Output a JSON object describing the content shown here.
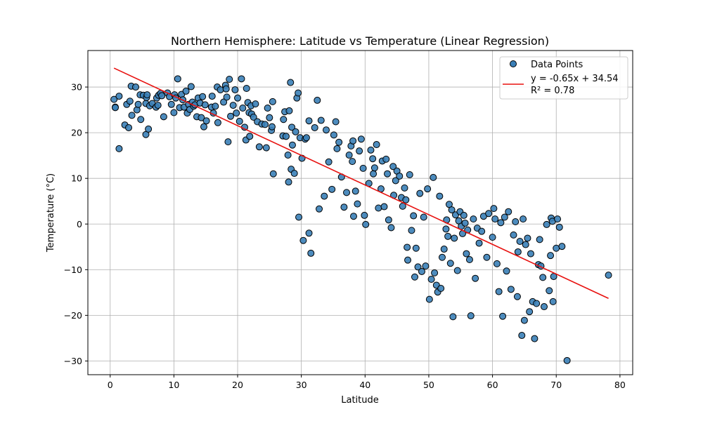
{
  "chart_data": {
    "type": "scatter",
    "title": "Northern Hemisphere: Latitude vs Temperature (Linear Regression)",
    "xlabel": "Latitude",
    "ylabel": "Temperature (°C)",
    "xlim": [
      -3.5,
      82
    ],
    "ylim": [
      -33,
      38
    ],
    "xticks": [
      0,
      10,
      20,
      30,
      40,
      50,
      60,
      70,
      80
    ],
    "yticks": [
      -30,
      -20,
      -10,
      0,
      10,
      20,
      30
    ],
    "grid": true,
    "legend_position": "top-right",
    "legend": [
      {
        "kind": "marker",
        "label": "Data Points"
      },
      {
        "kind": "line",
        "label": "y = -0.65x + 34.54"
      },
      {
        "kind": "text",
        "label": "R² = 0.78"
      }
    ],
    "colors": {
      "points": "#3a7fb7",
      "point_edge": "#000000",
      "regression": "#e8110f",
      "grid": "#b0b0b0"
    },
    "regression": {
      "slope": -0.65,
      "intercept": 34.54,
      "x_range": [
        0.6,
        78.2
      ],
      "equation": "y = -0.65x + 34.54",
      "r2": "R² = 0.78"
    },
    "series": [
      {
        "name": "Data Points",
        "points": [
          [
            0.6,
            27.3
          ],
          [
            0.8,
            25.6
          ],
          [
            0.8,
            25.5
          ],
          [
            1.4,
            16.5
          ],
          [
            1.4,
            28.0
          ],
          [
            2.3,
            21.7
          ],
          [
            2.6,
            26.2
          ],
          [
            2.9,
            21.1
          ],
          [
            3.1,
            26.9
          ],
          [
            3.3,
            30.2
          ],
          [
            3.4,
            23.8
          ],
          [
            4.0,
            30.0
          ],
          [
            4.2,
            25.0
          ],
          [
            4.4,
            26.2
          ],
          [
            4.7,
            28.3
          ],
          [
            4.8,
            22.9
          ],
          [
            5.2,
            28.2
          ],
          [
            5.6,
            19.6
          ],
          [
            5.6,
            26.4
          ],
          [
            5.7,
            27.7
          ],
          [
            5.8,
            28.3
          ],
          [
            6.0,
            20.8
          ],
          [
            6.2,
            25.9
          ],
          [
            6.6,
            26.4
          ],
          [
            7.2,
            25.6
          ],
          [
            7.3,
            27.6
          ],
          [
            7.5,
            26.0
          ],
          [
            7.6,
            28.2
          ],
          [
            7.9,
            28.6
          ],
          [
            8.1,
            28.1
          ],
          [
            8.4,
            23.5
          ],
          [
            9.0,
            28.7
          ],
          [
            9.3,
            27.9
          ],
          [
            9.6,
            26.2
          ],
          [
            10.0,
            24.4
          ],
          [
            10.1,
            28.3
          ],
          [
            10.3,
            27.6
          ],
          [
            10.6,
            31.8
          ],
          [
            10.9,
            25.5
          ],
          [
            11.2,
            28.4
          ],
          [
            11.4,
            27.2
          ],
          [
            11.6,
            25.6
          ],
          [
            11.9,
            29.1
          ],
          [
            12.1,
            24.3
          ],
          [
            12.3,
            26.2
          ],
          [
            12.5,
            25.1
          ],
          [
            12.7,
            30.1
          ],
          [
            12.9,
            26.7
          ],
          [
            13.1,
            25.8
          ],
          [
            13.3,
            26.1
          ],
          [
            13.6,
            23.5
          ],
          [
            13.8,
            27.6
          ],
          [
            14.1,
            26.5
          ],
          [
            14.3,
            23.3
          ],
          [
            14.5,
            27.9
          ],
          [
            14.7,
            21.3
          ],
          [
            14.9,
            26.1
          ],
          [
            15.1,
            22.6
          ],
          [
            15.9,
            25.6
          ],
          [
            16.0,
            28.0
          ],
          [
            16.2,
            24.3
          ],
          [
            16.5,
            25.8
          ],
          [
            16.8,
            30.0
          ],
          [
            16.9,
            22.2
          ],
          [
            17.3,
            29.4
          ],
          [
            17.8,
            26.7
          ],
          [
            18.1,
            30.4
          ],
          [
            18.2,
            29.6
          ],
          [
            18.3,
            27.8
          ],
          [
            18.5,
            18.0
          ],
          [
            18.7,
            31.7
          ],
          [
            18.9,
            23.6
          ],
          [
            19.3,
            26.0
          ],
          [
            19.6,
            29.4
          ],
          [
            19.8,
            24.3
          ],
          [
            20.0,
            27.6
          ],
          [
            20.3,
            22.5
          ],
          [
            20.6,
            31.8
          ],
          [
            20.8,
            25.4
          ],
          [
            21.1,
            21.2
          ],
          [
            21.3,
            18.4
          ],
          [
            21.4,
            29.7
          ],
          [
            21.6,
            26.6
          ],
          [
            21.8,
            24.4
          ],
          [
            21.9,
            19.2
          ],
          [
            22.1,
            25.9
          ],
          [
            22.2,
            24.1
          ],
          [
            22.5,
            23.4
          ],
          [
            22.8,
            26.3
          ],
          [
            23.1,
            22.4
          ],
          [
            23.4,
            16.9
          ],
          [
            23.8,
            21.9
          ],
          [
            24.3,
            21.8
          ],
          [
            24.5,
            16.7
          ],
          [
            24.7,
            25.4
          ],
          [
            25.0,
            23.3
          ],
          [
            25.3,
            20.5
          ],
          [
            25.4,
            21.3
          ],
          [
            25.5,
            26.8
          ],
          [
            25.6,
            11.0
          ],
          [
            27.1,
            19.3
          ],
          [
            27.2,
            22.9
          ],
          [
            27.4,
            24.6
          ],
          [
            27.6,
            19.2
          ],
          [
            27.9,
            15.1
          ],
          [
            28.0,
            9.2
          ],
          [
            28.1,
            24.8
          ],
          [
            28.3,
            31.0
          ],
          [
            28.4,
            12.0
          ],
          [
            28.5,
            21.2
          ],
          [
            28.6,
            17.3
          ],
          [
            28.9,
            11.1
          ],
          [
            29.1,
            20.2
          ],
          [
            29.3,
            27.6
          ],
          [
            29.5,
            28.7
          ],
          [
            29.6,
            1.5
          ],
          [
            29.8,
            18.9
          ],
          [
            30.1,
            14.4
          ],
          [
            30.3,
            -3.6
          ],
          [
            30.6,
            18.6
          ],
          [
            30.8,
            18.9
          ],
          [
            31.2,
            22.6
          ],
          [
            31.5,
            -6.4
          ],
          [
            31.2,
            -2.0
          ],
          [
            32.1,
            21.1
          ],
          [
            32.5,
            27.1
          ],
          [
            32.8,
            3.3
          ],
          [
            33.1,
            22.7
          ],
          [
            33.6,
            6.1
          ],
          [
            33.9,
            20.6
          ],
          [
            34.3,
            13.6
          ],
          [
            34.8,
            7.6
          ],
          [
            35.1,
            19.5
          ],
          [
            35.4,
            22.4
          ],
          [
            35.6,
            16.5
          ],
          [
            35.9,
            17.9
          ],
          [
            36.3,
            10.3
          ],
          [
            36.7,
            3.7
          ],
          [
            37.1,
            6.9
          ],
          [
            37.5,
            15.1
          ],
          [
            37.8,
            17.1
          ],
          [
            38.0,
            13.7
          ],
          [
            38.1,
            18.2
          ],
          [
            38.2,
            1.7
          ],
          [
            38.5,
            7.2
          ],
          [
            38.8,
            4.4
          ],
          [
            39.1,
            16.0
          ],
          [
            39.4,
            18.6
          ],
          [
            39.7,
            12.2
          ],
          [
            39.9,
            1.9
          ],
          [
            40.1,
            -0.1
          ],
          [
            40.6,
            8.9
          ],
          [
            40.9,
            16.2
          ],
          [
            41.2,
            14.3
          ],
          [
            41.3,
            11.0
          ],
          [
            41.5,
            12.3
          ],
          [
            41.8,
            17.4
          ],
          [
            42.1,
            3.5
          ],
          [
            42.5,
            7.7
          ],
          [
            42.7,
            13.8
          ],
          [
            43.0,
            3.8
          ],
          [
            43.3,
            14.2
          ],
          [
            43.5,
            11.0
          ],
          [
            43.7,
            0.9
          ],
          [
            44.1,
            -0.8
          ],
          [
            44.4,
            12.6
          ],
          [
            44.5,
            6.3
          ],
          [
            44.8,
            9.5
          ],
          [
            45.0,
            11.6
          ],
          [
            45.4,
            10.5
          ],
          [
            45.7,
            5.8
          ],
          [
            45.9,
            3.9
          ],
          [
            46.2,
            7.9
          ],
          [
            46.4,
            5.3
          ],
          [
            46.6,
            -5.1
          ],
          [
            46.7,
            -7.9
          ],
          [
            47.0,
            10.8
          ],
          [
            47.3,
            -1.4
          ],
          [
            47.6,
            1.8
          ],
          [
            47.8,
            -11.6
          ],
          [
            48.0,
            -5.3
          ],
          [
            48.3,
            -9.4
          ],
          [
            48.6,
            6.7
          ],
          [
            48.9,
            -10.4
          ],
          [
            49.2,
            1.5
          ],
          [
            49.5,
            -9.2
          ],
          [
            49.8,
            7.7
          ],
          [
            50.1,
            -16.5
          ],
          [
            50.4,
            -12.1
          ],
          [
            50.7,
            10.2
          ],
          [
            50.9,
            -10.7
          ],
          [
            51.2,
            -13.4
          ],
          [
            51.4,
            -14.9
          ],
          [
            51.7,
            6.1
          ],
          [
            51.9,
            -14.1
          ],
          [
            52.1,
            -7.3
          ],
          [
            52.4,
            -5.5
          ],
          [
            52.7,
            -1.1
          ],
          [
            52.8,
            0.9
          ],
          [
            53.0,
            -2.7
          ],
          [
            53.2,
            4.3
          ],
          [
            53.4,
            -8.6
          ],
          [
            53.6,
            3.1
          ],
          [
            53.8,
            -20.3
          ],
          [
            54.0,
            -3.1
          ],
          [
            54.2,
            2.0
          ],
          [
            54.5,
            -10.2
          ],
          [
            54.7,
            0.7
          ],
          [
            54.9,
            2.7
          ],
          [
            55.1,
            -0.5
          ],
          [
            55.3,
            -2.1
          ],
          [
            55.5,
            1.9
          ],
          [
            55.7,
            0.2
          ],
          [
            55.9,
            -6.5
          ],
          [
            56.1,
            -1.3
          ],
          [
            56.4,
            -7.8
          ],
          [
            56.6,
            -20.1
          ],
          [
            57.0,
            1.1
          ],
          [
            57.3,
            -11.9
          ],
          [
            57.6,
            -0.9
          ],
          [
            57.9,
            -4.2
          ],
          [
            58.3,
            -1.6
          ],
          [
            58.6,
            1.7
          ],
          [
            59.1,
            -7.3
          ],
          [
            59.4,
            2.3
          ],
          [
            60.0,
            -2.9
          ],
          [
            60.2,
            3.4
          ],
          [
            60.4,
            1.1
          ],
          [
            60.7,
            -8.7
          ],
          [
            61.0,
            -14.8
          ],
          [
            61.3,
            0.3
          ],
          [
            61.6,
            -20.2
          ],
          [
            61.9,
            1.5
          ],
          [
            62.2,
            -10.3
          ],
          [
            62.5,
            2.7
          ],
          [
            62.9,
            -14.3
          ],
          [
            63.3,
            -2.4
          ],
          [
            63.6,
            0.5
          ],
          [
            63.9,
            -15.9
          ],
          [
            64.0,
            -6.1
          ],
          [
            64.3,
            -3.8
          ],
          [
            64.6,
            -24.4
          ],
          [
            64.8,
            1.1
          ],
          [
            65.0,
            -21.1
          ],
          [
            65.2,
            -4.5
          ],
          [
            65.5,
            -3.1
          ],
          [
            65.8,
            -19.2
          ],
          [
            66.0,
            -6.5
          ],
          [
            66.3,
            -17.0
          ],
          [
            66.6,
            -25.1
          ],
          [
            66.9,
            -17.4
          ],
          [
            67.2,
            -8.9
          ],
          [
            67.4,
            -3.4
          ],
          [
            67.6,
            -9.2
          ],
          [
            67.9,
            -11.7
          ],
          [
            68.1,
            -18.1
          ],
          [
            68.5,
            -0.1
          ],
          [
            68.9,
            -14.6
          ],
          [
            69.1,
            -6.9
          ],
          [
            69.2,
            1.3
          ],
          [
            69.4,
            0.6
          ],
          [
            69.6,
            -11.5
          ],
          [
            69.5,
            -17.0
          ],
          [
            70.0,
            -5.3
          ],
          [
            70.2,
            1.1
          ],
          [
            70.5,
            -0.7
          ],
          [
            70.9,
            -4.9
          ],
          [
            71.7,
            -29.9
          ],
          [
            78.2,
            -11.2
          ]
        ]
      }
    ]
  }
}
